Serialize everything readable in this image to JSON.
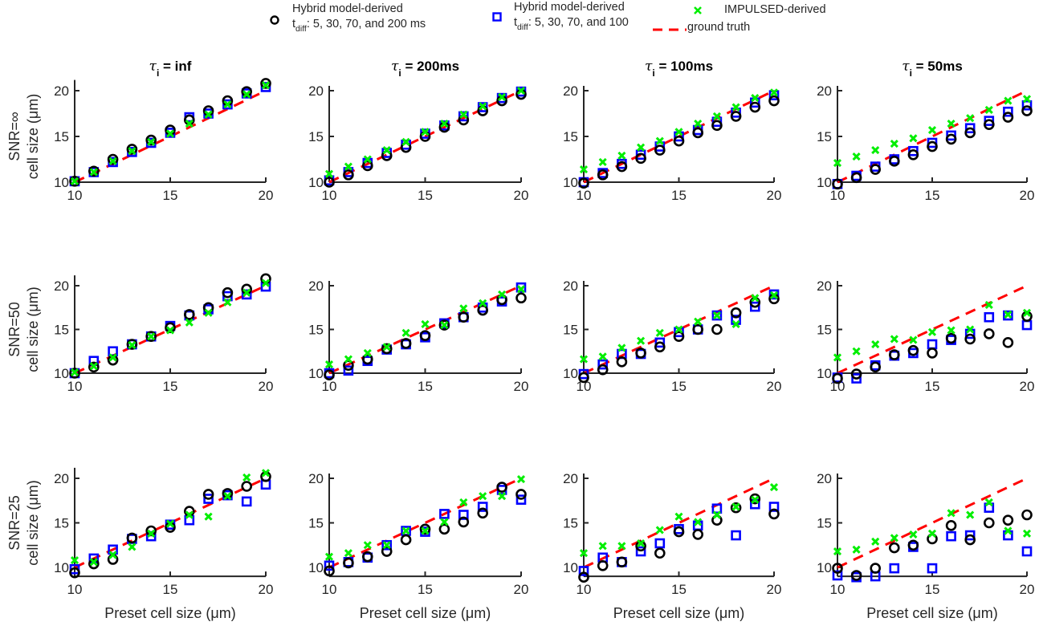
{
  "legend": {
    "hybrid200": {
      "line1": "Hybrid model-derived",
      "t": "t",
      "sub": "diff",
      "rest": ": 5, 30, 70, and 200 ms"
    },
    "hybrid100": {
      "line1": "Hybrid model-derived",
      "t": "t",
      "sub": "diff",
      "rest": ": 5, 30, 70, and 100"
    },
    "impulsed": "IMPULSED-derived",
    "truth": "ground truth"
  },
  "chart_data": {
    "type": "scatter",
    "layout": "3 rows x 4 columns",
    "colors": {
      "hybrid200": "#000000",
      "hybrid100": "#0000ff",
      "impulsed": "#00ee00",
      "truth": "#ff0000"
    },
    "column_titles": [
      "inf",
      "200ms",
      "100ms",
      "50ms"
    ],
    "column_title_prefix": "τ",
    "column_title_sub": "i",
    "row_labels": [
      "SNR=∞",
      "SNR=50",
      "SNR=25"
    ],
    "ylabel": "cell size (μm)",
    "xlabel": "Preset cell size (μm)",
    "xlim": [
      10,
      20
    ],
    "xticks": [
      10,
      15,
      20
    ],
    "yticks": [
      10,
      15,
      20
    ],
    "x": [
      10,
      11,
      12,
      13,
      14,
      15,
      16,
      17,
      18,
      19,
      20
    ],
    "panels": [
      {
        "row": 0,
        "col": 0,
        "ylim": [
          10,
          21
        ],
        "hybrid200": [
          10.1,
          11.2,
          12.5,
          13.6,
          14.6,
          15.7,
          16.8,
          17.8,
          18.9,
          19.9,
          20.8
        ],
        "hybrid100": [
          10.1,
          11.1,
          12.2,
          13.3,
          14.3,
          15.4,
          17.1,
          17.5,
          18.5,
          19.7,
          20.4
        ],
        "impulsed": [
          10.1,
          11.1,
          12.3,
          13.4,
          14.4,
          15.3,
          16.4,
          17.4,
          18.5,
          19.6,
          20.6
        ]
      },
      {
        "row": 0,
        "col": 1,
        "ylim": [
          10,
          20
        ],
        "hybrid200": [
          10.0,
          10.8,
          11.8,
          12.9,
          13.8,
          15.0,
          16.0,
          16.8,
          17.8,
          18.9,
          19.6
        ],
        "hybrid100": [
          10.2,
          11.1,
          12.1,
          13.2,
          14.1,
          15.3,
          16.2,
          17.2,
          18.2,
          19.2,
          19.9
        ],
        "impulsed": [
          10.9,
          11.7,
          12.5,
          13.5,
          14.4,
          15.5,
          16.4,
          17.4,
          18.3,
          19.3,
          20.0
        ]
      },
      {
        "row": 0,
        "col": 2,
        "ylim": [
          10,
          20
        ],
        "hybrid200": [
          9.9,
          10.8,
          11.7,
          12.6,
          13.5,
          14.5,
          15.4,
          16.2,
          17.2,
          18.2,
          18.9
        ],
        "hybrid100": [
          10.0,
          11.0,
          12.0,
          13.0,
          13.9,
          15.0,
          15.7,
          16.6,
          17.6,
          18.7,
          19.5
        ],
        "impulsed": [
          11.4,
          12.2,
          12.9,
          13.8,
          14.5,
          15.5,
          16.4,
          17.2,
          18.2,
          19.2,
          19.8
        ]
      },
      {
        "row": 0,
        "col": 3,
        "ylim": [
          10,
          20
        ],
        "hybrid200": [
          9.8,
          10.5,
          11.4,
          12.3,
          13.0,
          13.9,
          14.7,
          15.4,
          16.3,
          17.1,
          17.8
        ],
        "hybrid100": [
          9.8,
          10.7,
          11.7,
          12.5,
          13.4,
          14.3,
          15.1,
          15.9,
          16.7,
          17.7,
          18.4
        ],
        "impulsed": [
          12.1,
          12.8,
          13.5,
          14.2,
          14.8,
          15.7,
          16.4,
          17.0,
          17.9,
          18.9,
          19.1
        ]
      },
      {
        "row": 1,
        "col": 0,
        "ylim": [
          10,
          21
        ],
        "hybrid200": [
          10.0,
          10.7,
          11.5,
          13.3,
          14.2,
          15.2,
          16.7,
          17.5,
          19.2,
          19.6,
          20.8
        ],
        "hybrid100": [
          10.0,
          11.4,
          12.5,
          13.3,
          14.2,
          15.4,
          16.6,
          17.3,
          18.8,
          19.0,
          19.9
        ],
        "impulsed": [
          10.1,
          10.8,
          11.8,
          13.2,
          14.2,
          14.9,
          15.8,
          16.9,
          18.1,
          19.2,
          20.3
        ]
      },
      {
        "row": 1,
        "col": 1,
        "ylim": [
          10,
          20
        ],
        "hybrid200": [
          9.8,
          10.9,
          11.6,
          12.8,
          13.4,
          14.3,
          15.5,
          16.4,
          17.2,
          18.4,
          18.6
        ],
        "hybrid100": [
          10.0,
          10.3,
          11.4,
          12.7,
          13.3,
          14.1,
          15.7,
          16.4,
          17.5,
          18.2,
          19.8
        ],
        "impulsed": [
          11.0,
          11.6,
          12.3,
          13.0,
          14.6,
          15.6,
          15.5,
          17.4,
          18.0,
          19.0,
          19.6
        ]
      },
      {
        "row": 1,
        "col": 2,
        "ylim": [
          10,
          20
        ],
        "hybrid200": [
          9.5,
          10.4,
          11.3,
          12.3,
          13.0,
          14.2,
          15.0,
          15.0,
          16.9,
          18.1,
          18.5
        ],
        "hybrid100": [
          9.9,
          11.0,
          12.2,
          12.2,
          13.5,
          14.7,
          15.0,
          16.6,
          16.1,
          17.6,
          19.0
        ],
        "impulsed": [
          11.6,
          11.9,
          12.9,
          13.7,
          14.6,
          15.0,
          15.9,
          16.6,
          15.6,
          18.6,
          18.9
        ]
      },
      {
        "row": 1,
        "col": 3,
        "ylim": [
          10,
          20
        ],
        "hybrid200": [
          9.4,
          9.9,
          10.7,
          12.1,
          12.6,
          12.3,
          14.0,
          13.9,
          14.5,
          13.5,
          16.5
        ],
        "hybrid100": [
          9.5,
          9.4,
          10.9,
          12.0,
          12.3,
          13.3,
          13.8,
          14.5,
          16.4,
          16.6,
          15.5
        ],
        "impulsed": [
          11.8,
          12.5,
          13.3,
          13.9,
          13.8,
          14.7,
          14.9,
          15.0,
          17.8,
          16.7,
          16.9
        ]
      },
      {
        "row": 2,
        "col": 0,
        "ylim": [
          9,
          21
        ],
        "hybrid200": [
          9.4,
          10.4,
          10.9,
          13.3,
          14.1,
          14.5,
          16.3,
          18.2,
          18.3,
          19.1,
          20.2
        ],
        "hybrid100": [
          9.8,
          11.0,
          12.0,
          13.2,
          13.5,
          14.8,
          15.3,
          17.7,
          18.1,
          17.4,
          19.3
        ],
        "impulsed": [
          10.8,
          10.6,
          11.4,
          12.3,
          13.8,
          14.9,
          15.9,
          15.7,
          18.0,
          20.1,
          20.6
        ]
      },
      {
        "row": 2,
        "col": 1,
        "ylim": [
          9,
          20
        ],
        "hybrid200": [
          9.6,
          10.5,
          11.2,
          11.8,
          13.1,
          14.3,
          14.3,
          15.1,
          16.1,
          19.0,
          18.2
        ],
        "hybrid100": [
          10.2,
          10.6,
          11.1,
          12.5,
          14.1,
          14.0,
          16.0,
          15.9,
          16.8,
          18.7,
          17.6
        ],
        "impulsed": [
          11.2,
          11.6,
          12.5,
          12.5,
          14.1,
          14.1,
          15.1,
          17.3,
          18.0,
          18.0,
          19.9
        ]
      },
      {
        "row": 2,
        "col": 2,
        "ylim": [
          9,
          20
        ],
        "hybrid200": [
          8.9,
          10.2,
          10.6,
          12.4,
          11.6,
          14.0,
          13.7,
          15.3,
          16.7,
          17.7,
          16.0
        ],
        "hybrid100": [
          9.6,
          11.1,
          10.6,
          11.8,
          12.7,
          14.3,
          14.7,
          16.6,
          13.6,
          17.1,
          16.8
        ],
        "impulsed": [
          11.6,
          12.4,
          12.4,
          12.7,
          14.2,
          15.7,
          15.1,
          15.9,
          16.8,
          17.6,
          19.0
        ]
      },
      {
        "row": 2,
        "col": 3,
        "ylim": [
          9,
          20
        ],
        "hybrid200": [
          9.9,
          9.1,
          9.9,
          12.2,
          12.5,
          13.2,
          14.7,
          13.1,
          15.0,
          15.3,
          15.9
        ],
        "hybrid100": [
          9.1,
          8.9,
          9.0,
          9.9,
          12.3,
          9.9,
          13.5,
          13.6,
          16.7,
          13.6,
          11.8
        ],
        "impulsed": [
          11.8,
          12.0,
          12.9,
          13.3,
          13.7,
          13.8,
          16.1,
          15.9,
          17.3,
          14.1,
          13.8
        ]
      }
    ],
    "ground_truth": "y = x"
  }
}
